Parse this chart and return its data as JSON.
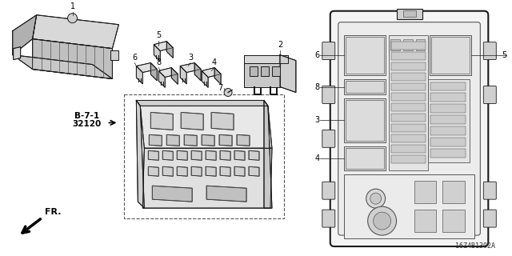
{
  "bg_color": "#ffffff",
  "diagram_code": "16Z4B1302A",
  "lw": 0.7,
  "gray": "#555555",
  "dgray": "#222222",
  "light": "#e8e8e8",
  "mid": "#d0d0d0",
  "dark": "#b8b8b8"
}
